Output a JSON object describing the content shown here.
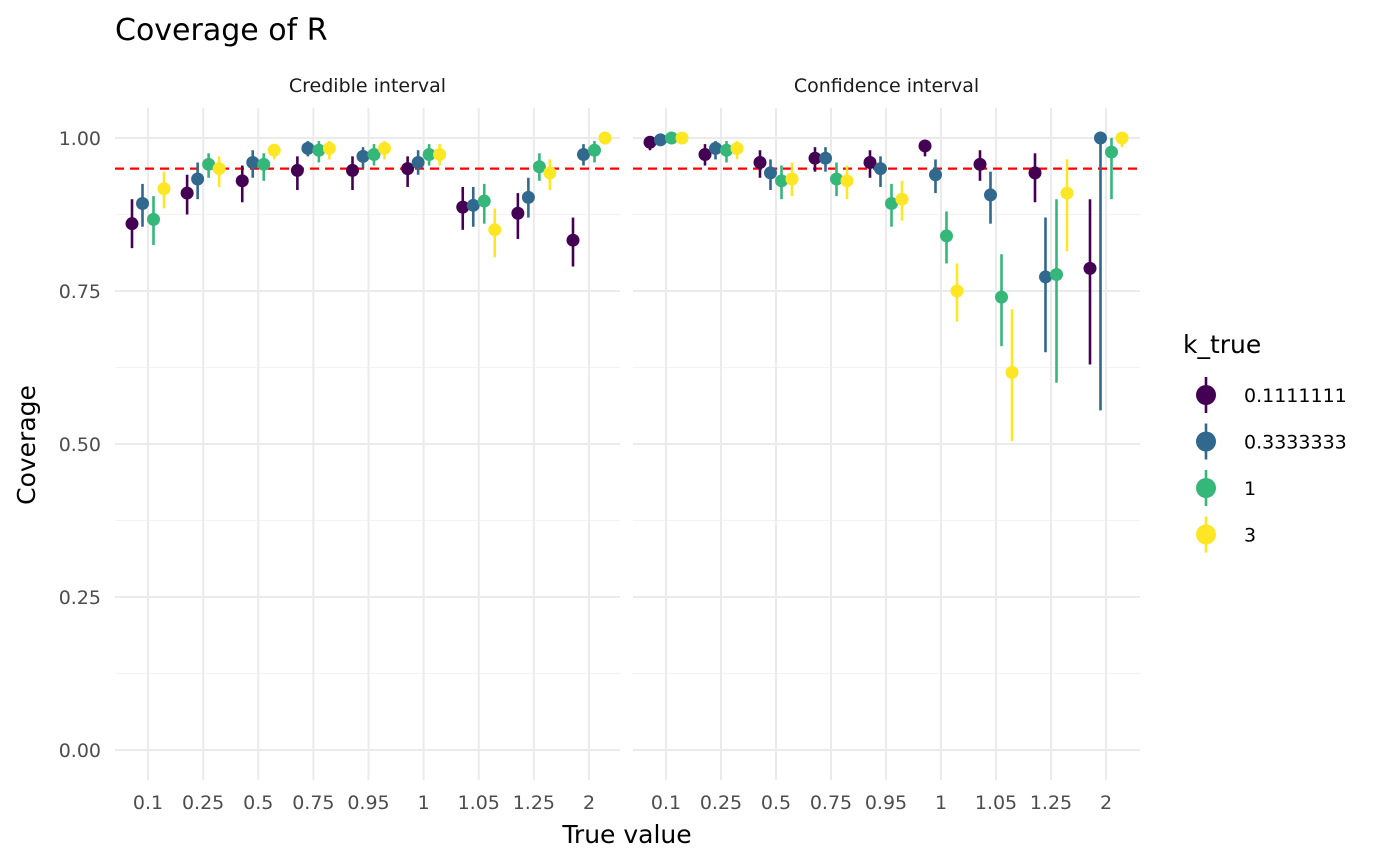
{
  "title": "Coverage of R",
  "chart_data": {
    "type": "scatter",
    "subtype": "pointrange",
    "title": "Coverage of R",
    "xlabel": "True value",
    "ylabel": "Coverage",
    "ylim": [
      0,
      1
    ],
    "yticks": [
      "0.00",
      "0.25",
      "0.50",
      "0.75",
      "1.00"
    ],
    "ytick_values": [
      0,
      0.25,
      0.5,
      0.75,
      1
    ],
    "categories": [
      "0.1",
      "0.25",
      "0.5",
      "0.75",
      "0.95",
      "1",
      "1.05",
      "1.25",
      "2"
    ],
    "reference_line": {
      "y": 0.95,
      "color": "#ff0000",
      "style": "dashed"
    },
    "legend": {
      "title": "k_true",
      "position": "right",
      "entries": [
        {
          "label": "0.1111111",
          "color": "#440154"
        },
        {
          "label": "0.3333333",
          "color": "#31688e"
        },
        {
          "label": "1",
          "color": "#35b779"
        },
        {
          "label": "3",
          "color": "#fde725"
        }
      ]
    },
    "grid": true,
    "facets": [
      {
        "label": "Credible interval",
        "series": [
          {
            "name": "0.1111111",
            "points": [
              {
                "x": "0.1",
                "y": 0.86,
                "lo": 0.82,
                "hi": 0.9
              },
              {
                "x": "0.25",
                "y": 0.91,
                "lo": 0.875,
                "hi": 0.94
              },
              {
                "x": "0.5",
                "y": 0.93,
                "lo": 0.895,
                "hi": 0.955
              },
              {
                "x": "0.75",
                "y": 0.947,
                "lo": 0.915,
                "hi": 0.97
              },
              {
                "x": "0.95",
                "y": 0.947,
                "lo": 0.915,
                "hi": 0.97
              },
              {
                "x": "1",
                "y": 0.95,
                "lo": 0.92,
                "hi": 0.97
              },
              {
                "x": "1.05",
                "y": 0.887,
                "lo": 0.85,
                "hi": 0.92
              },
              {
                "x": "1.25",
                "y": 0.877,
                "lo": 0.835,
                "hi": 0.91
              },
              {
                "x": "2",
                "y": 0.833,
                "lo": 0.79,
                "hi": 0.87
              }
            ]
          },
          {
            "name": "0.3333333",
            "points": [
              {
                "x": "0.1",
                "y": 0.893,
                "lo": 0.855,
                "hi": 0.925
              },
              {
                "x": "0.25",
                "y": 0.933,
                "lo": 0.9,
                "hi": 0.96
              },
              {
                "x": "0.5",
                "y": 0.96,
                "lo": 0.935,
                "hi": 0.98
              },
              {
                "x": "0.75",
                "y": 0.983,
                "lo": 0.97,
                "hi": 0.995
              },
              {
                "x": "0.95",
                "y": 0.97,
                "lo": 0.95,
                "hi": 0.985
              },
              {
                "x": "1",
                "y": 0.96,
                "lo": 0.94,
                "hi": 0.98
              },
              {
                "x": "1.05",
                "y": 0.89,
                "lo": 0.855,
                "hi": 0.92
              },
              {
                "x": "1.25",
                "y": 0.903,
                "lo": 0.87,
                "hi": 0.935
              },
              {
                "x": "2",
                "y": 0.973,
                "lo": 0.955,
                "hi": 0.99
              }
            ]
          },
          {
            "name": "1",
            "points": [
              {
                "x": "0.1",
                "y": 0.867,
                "lo": 0.825,
                "hi": 0.905
              },
              {
                "x": "0.25",
                "y": 0.957,
                "lo": 0.935,
                "hi": 0.975
              },
              {
                "x": "0.5",
                "y": 0.957,
                "lo": 0.93,
                "hi": 0.975
              },
              {
                "x": "0.75",
                "y": 0.98,
                "lo": 0.96,
                "hi": 0.995
              },
              {
                "x": "0.95",
                "y": 0.973,
                "lo": 0.955,
                "hi": 0.99
              },
              {
                "x": "1",
                "y": 0.973,
                "lo": 0.955,
                "hi": 0.99
              },
              {
                "x": "1.05",
                "y": 0.897,
                "lo": 0.86,
                "hi": 0.925
              },
              {
                "x": "1.25",
                "y": 0.953,
                "lo": 0.93,
                "hi": 0.975
              },
              {
                "x": "2",
                "y": 0.98,
                "lo": 0.96,
                "hi": 0.995
              }
            ]
          },
          {
            "name": "3",
            "points": [
              {
                "x": "0.1",
                "y": 0.917,
                "lo": 0.885,
                "hi": 0.945
              },
              {
                "x": "0.25",
                "y": 0.95,
                "lo": 0.92,
                "hi": 0.97
              },
              {
                "x": "0.5",
                "y": 0.98,
                "lo": 0.965,
                "hi": 0.99
              },
              {
                "x": "0.75",
                "y": 0.983,
                "lo": 0.965,
                "hi": 0.995
              },
              {
                "x": "0.95",
                "y": 0.983,
                "lo": 0.965,
                "hi": 0.995
              },
              {
                "x": "1",
                "y": 0.973,
                "lo": 0.955,
                "hi": 0.99
              },
              {
                "x": "1.05",
                "y": 0.85,
                "lo": 0.805,
                "hi": 0.885
              },
              {
                "x": "1.25",
                "y": 0.943,
                "lo": 0.915,
                "hi": 0.965
              },
              {
                "x": "2",
                "y": 1.0,
                "lo": 1.0,
                "hi": 1.0
              }
            ]
          }
        ]
      },
      {
        "label": "Confidence interval",
        "series": [
          {
            "name": "0.1111111",
            "points": [
              {
                "x": "0.1",
                "y": 0.993,
                "lo": 0.98,
                "hi": 1.0
              },
              {
                "x": "0.25",
                "y": 0.973,
                "lo": 0.955,
                "hi": 0.99
              },
              {
                "x": "0.5",
                "y": 0.96,
                "lo": 0.935,
                "hi": 0.98
              },
              {
                "x": "0.75",
                "y": 0.967,
                "lo": 0.945,
                "hi": 0.985
              },
              {
                "x": "0.95",
                "y": 0.96,
                "lo": 0.935,
                "hi": 0.98
              },
              {
                "x": "1",
                "y": 0.987,
                "lo": 0.97,
                "hi": 0.995
              },
              {
                "x": "1.05",
                "y": 0.957,
                "lo": 0.93,
                "hi": 0.98
              },
              {
                "x": "1.25",
                "y": 0.943,
                "lo": 0.895,
                "hi": 0.975
              },
              {
                "x": "2",
                "y": 0.787,
                "lo": 0.63,
                "hi": 0.9
              }
            ]
          },
          {
            "name": "0.3333333",
            "points": [
              {
                "x": "0.1",
                "y": 0.997,
                "lo": 0.99,
                "hi": 1.0
              },
              {
                "x": "0.25",
                "y": 0.983,
                "lo": 0.965,
                "hi": 0.995
              },
              {
                "x": "0.5",
                "y": 0.943,
                "lo": 0.915,
                "hi": 0.965
              },
              {
                "x": "0.75",
                "y": 0.967,
                "lo": 0.945,
                "hi": 0.985
              },
              {
                "x": "0.95",
                "y": 0.95,
                "lo": 0.92,
                "hi": 0.97
              },
              {
                "x": "1",
                "y": 0.94,
                "lo": 0.91,
                "hi": 0.965
              },
              {
                "x": "1.05",
                "y": 0.907,
                "lo": 0.86,
                "hi": 0.945
              },
              {
                "x": "1.25",
                "y": 0.773,
                "lo": 0.65,
                "hi": 0.87
              },
              {
                "x": "2",
                "y": 1.0,
                "lo": 0.555,
                "hi": 1.0
              }
            ]
          },
          {
            "name": "1",
            "points": [
              {
                "x": "0.1",
                "y": 1.0,
                "lo": 1.0,
                "hi": 1.0
              },
              {
                "x": "0.25",
                "y": 0.98,
                "lo": 0.96,
                "hi": 0.995
              },
              {
                "x": "0.5",
                "y": 0.93,
                "lo": 0.9,
                "hi": 0.955
              },
              {
                "x": "0.75",
                "y": 0.933,
                "lo": 0.905,
                "hi": 0.96
              },
              {
                "x": "0.95",
                "y": 0.893,
                "lo": 0.855,
                "hi": 0.925
              },
              {
                "x": "1",
                "y": 0.84,
                "lo": 0.795,
                "hi": 0.88
              },
              {
                "x": "1.05",
                "y": 0.74,
                "lo": 0.66,
                "hi": 0.81
              },
              {
                "x": "1.25",
                "y": 0.777,
                "lo": 0.6,
                "hi": 0.9
              },
              {
                "x": "2",
                "y": 0.977,
                "lo": 0.9,
                "hi": 1.0
              }
            ]
          },
          {
            "name": "3",
            "points": [
              {
                "x": "0.1",
                "y": 1.0,
                "lo": 1.0,
                "hi": 1.0
              },
              {
                "x": "0.25",
                "y": 0.983,
                "lo": 0.965,
                "hi": 0.995
              },
              {
                "x": "0.5",
                "y": 0.933,
                "lo": 0.905,
                "hi": 0.96
              },
              {
                "x": "0.75",
                "y": 0.93,
                "lo": 0.9,
                "hi": 0.955
              },
              {
                "x": "0.95",
                "y": 0.9,
                "lo": 0.865,
                "hi": 0.93
              },
              {
                "x": "1",
                "y": 0.75,
                "lo": 0.7,
                "hi": 0.795
              },
              {
                "x": "1.05",
                "y": 0.617,
                "lo": 0.505,
                "hi": 0.72
              },
              {
                "x": "1.25",
                "y": 0.91,
                "lo": 0.815,
                "hi": 0.965
              },
              {
                "x": "2",
                "y": 1.0,
                "lo": 0.985,
                "hi": 1.0
              }
            ]
          }
        ]
      }
    ]
  }
}
